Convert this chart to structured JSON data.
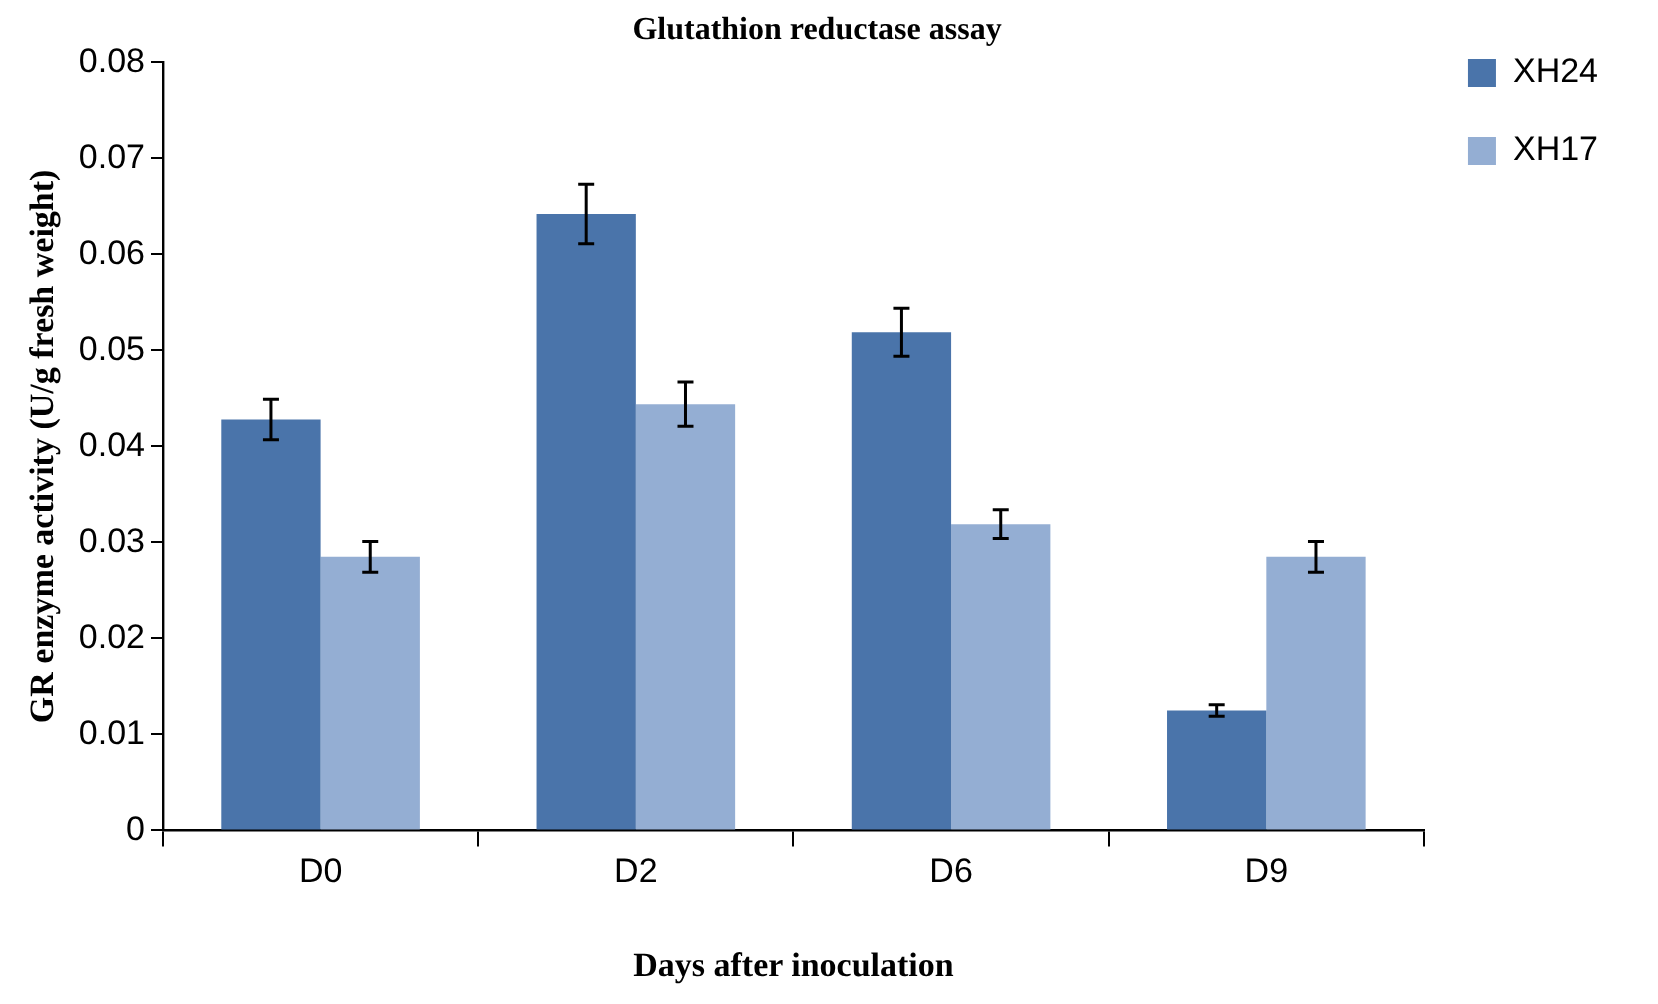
{
  "chart_data": {
    "type": "bar",
    "title": "Glutathion reductase assay",
    "xlabel": "Days after inoculation",
    "ylabel": "GR enzyme activity (U/g fresh weight)",
    "categories": [
      "D0",
      "D2",
      "D6",
      "D9"
    ],
    "series": [
      {
        "name": "XH24",
        "color": "#4a74aa",
        "values": [
          0.0428,
          0.0642,
          0.0519,
          0.0125
        ],
        "errors": [
          0.0021,
          0.0031,
          0.0025,
          0.0006
        ]
      },
      {
        "name": "XH17",
        "color": "#94aed3",
        "values": [
          0.0285,
          0.0444,
          0.0319,
          0.0285
        ],
        "errors": [
          0.0016,
          0.0023,
          0.0015,
          0.0016
        ]
      }
    ],
    "ylim": [
      0,
      0.08
    ],
    "yticks": [
      0,
      0.01,
      0.02,
      0.03,
      0.04,
      0.05,
      0.06,
      0.07,
      0.08
    ],
    "grid": false,
    "legend": "top right"
  }
}
